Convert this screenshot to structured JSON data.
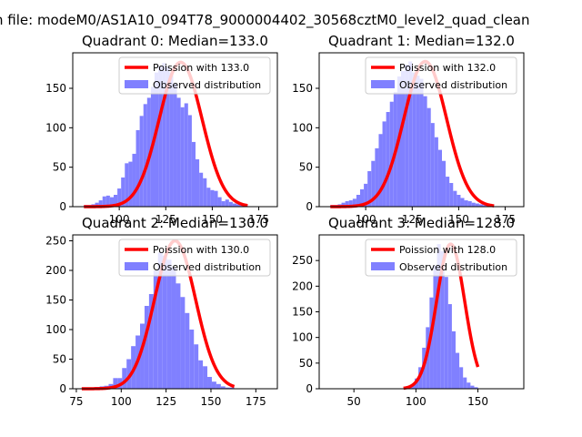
{
  "suptitle": "n file: modeM0/AS1A10_094T78_9000004402_30568cztM0_level2_quad_clean",
  "colors": {
    "poisson": "#ff0000",
    "observed": "#8080ff"
  },
  "chart_data": [
    {
      "type": "bar",
      "title": "Quadrant 0: Median=133.0",
      "median": 133.0,
      "xlim": [
        75,
        185
      ],
      "ylim": [
        0,
        195
      ],
      "xticks": [
        100,
        125,
        150,
        175
      ],
      "yticks": [
        0,
        50,
        100,
        150
      ],
      "legend": [
        "Poission with 133.0",
        "Observed distribution"
      ],
      "poisson_peak": 183,
      "hist": {
        "start": 81,
        "width": 2,
        "values": [
          2,
          2,
          3,
          5,
          8,
          13,
          14,
          12,
          15,
          23,
          37,
          55,
          57,
          67,
          97,
          115,
          130,
          138,
          152,
          170,
          178,
          182,
          177,
          170,
          156,
          138,
          126,
          131,
          116,
          82,
          60,
          43,
          36,
          24,
          21,
          20,
          12,
          7,
          9,
          6,
          4,
          3,
          2,
          2
        ]
      }
    },
    {
      "type": "bar",
      "title": "Quadrant 1: Median=132.0",
      "median": 132.0,
      "xlim": [
        75,
        185
      ],
      "ylim": [
        0,
        195
      ],
      "xticks": [
        100,
        125,
        150,
        175
      ],
      "yticks": [
        0,
        50,
        100,
        150
      ],
      "legend": [
        "Poission with 132.0",
        "Observed distribution"
      ],
      "poisson_peak": 184,
      "hist": {
        "start": 81,
        "width": 2,
        "values": [
          2,
          2,
          3,
          5,
          7,
          8,
          10,
          15,
          22,
          29,
          45,
          58,
          74,
          92,
          108,
          120,
          133,
          145,
          165,
          172,
          180,
          184,
          170,
          166,
          162,
          140,
          125,
          106,
          88,
          72,
          58,
          38,
          30,
          20,
          15,
          11,
          8,
          7,
          5,
          4,
          3,
          2,
          2,
          2
        ]
      }
    },
    {
      "type": "bar",
      "title": "Quadrant 2: Median=130.0",
      "median": 130.0,
      "xlim": [
        73,
        187
      ],
      "ylim": [
        0,
        260
      ],
      "xticks": [
        75,
        100,
        125,
        150,
        175
      ],
      "yticks": [
        0,
        50,
        100,
        150,
        200,
        250
      ],
      "legend": [
        "Poission with 130.0",
        "Observed distribution"
      ],
      "poisson_peak": 250,
      "hist": {
        "start": 78,
        "width": 2.5,
        "values": [
          2,
          2,
          2,
          3,
          4,
          5,
          8,
          18,
          18,
          35,
          50,
          72,
          90,
          110,
          140,
          160,
          200,
          230,
          225,
          218,
          205,
          178,
          155,
          128,
          100,
          75,
          48,
          38,
          20,
          12,
          8,
          4,
          2,
          2
        ]
      }
    },
    {
      "type": "bar",
      "title": "Quadrant 3: Median=128.0",
      "median": 128.0,
      "xlim": [
        22,
        187
      ],
      "ylim": [
        0,
        300
      ],
      "xticks": [
        50,
        100,
        150
      ],
      "yticks": [
        0,
        50,
        100,
        150,
        200,
        250
      ],
      "legend": [
        "Poission with 128.0",
        "Observed distribution"
      ],
      "poisson_peak": 282,
      "hist": {
        "start": 90,
        "width": 3,
        "values": [
          2,
          3,
          8,
          20,
          42,
          80,
          120,
          178,
          240,
          282,
          268,
          218,
          165,
          112,
          70,
          42,
          22,
          12,
          6,
          3
        ]
      }
    }
  ]
}
